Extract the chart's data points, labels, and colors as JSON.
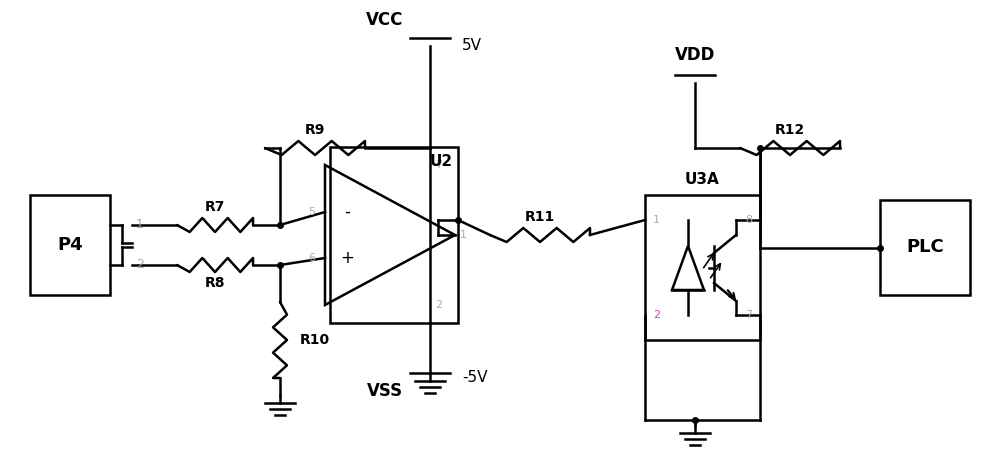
{
  "background_color": "#ffffff",
  "line_color": "#000000",
  "pin_label_color": "#aaaaaa",
  "pink_label_color": "#cc44aa",
  "vcc_label": "VCC",
  "vcc_voltage": "5V",
  "vss_label": "VSS",
  "vss_voltage": "-5V",
  "vdd_label": "VDD",
  "p4_label": "P4",
  "plc_label": "PLC",
  "u2_label": "U2",
  "u3a_label": "U3A",
  "r7_label": "R7",
  "r8_label": "R8",
  "r9_label": "R9",
  "r10_label": "R10",
  "r11_label": "R11",
  "r12_label": "R12"
}
